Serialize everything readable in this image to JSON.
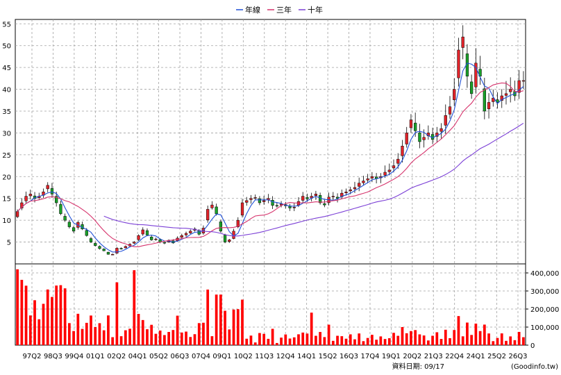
{
  "chart_data": {
    "type": "candlestick",
    "legend": [
      {
        "name": "年線",
        "color": "#1e4fd6"
      },
      {
        "name": "三年",
        "color": "#d6336c"
      },
      {
        "name": "十年",
        "color": "#7b3fd6"
      }
    ],
    "colors": {
      "up": "#e3232a",
      "down": "#1aa12a",
      "volume": "#ff0000",
      "grid": "#a0a0a0"
    },
    "price_axis": {
      "ylim": [
        0,
        56
      ],
      "ticks": [
        5,
        10,
        15,
        20,
        25,
        30,
        35,
        40,
        45,
        50,
        55
      ]
    },
    "volume_axis": {
      "ylim": [
        0,
        450000
      ],
      "ticks": [
        0,
        100000,
        200000,
        300000,
        400000
      ],
      "tick_labels": [
        "0",
        "100,000",
        "200,000",
        "300,000",
        "400,000"
      ]
    },
    "x_tick_labels": [
      "97Q2",
      "98Q3",
      "99Q4",
      "01Q1",
      "02Q2",
      "04Q1",
      "05Q2",
      "06Q3",
      "07Q4",
      "09Q1",
      "10Q2",
      "11Q3",
      "12Q4",
      "14Q1",
      "15Q2",
      "16Q3",
      "17Q4",
      "19Q1",
      "20Q2",
      "21Q3",
      "22Q4",
      "24Q1",
      "25Q2",
      "26Q3"
    ],
    "source_label": "資料日期: 09/17",
    "source_site": "(Goodinfo.tw)",
    "n_periods": 118,
    "close": [
      12,
      14,
      15.5,
      16,
      15,
      15.5,
      16.5,
      18,
      16,
      14,
      11.5,
      10,
      8.5,
      7.5,
      9.5,
      8,
      6.5,
      5,
      4.2,
      3.5,
      3,
      2.2,
      2.2,
      3.6,
      3.5,
      4,
      4.5,
      5,
      6.5,
      7.8,
      6.6,
      5.5,
      5.7,
      5,
      4.8,
      5.4,
      4.8,
      5.9,
      6.5,
      7,
      7.5,
      8,
      6.8,
      8.2,
      12.5,
      13.5,
      11.5,
      7.5,
      5,
      5.5,
      7.5,
      10,
      14,
      14.5,
      15,
      15.2,
      14,
      14.5,
      15,
      13.4,
      13.3,
      13.7,
      13.3,
      12.8,
      13,
      14.3,
      15.5,
      14.9,
      15.5,
      16,
      14,
      13.5,
      15.3,
      15.5,
      15,
      16.2,
      16.5,
      17,
      17.5,
      18.5,
      19,
      19.5,
      20,
      19.5,
      20,
      21,
      21.5,
      22.5,
      24,
      27,
      30,
      33,
      30.5,
      28,
      29,
      30,
      28.5,
      30,
      31,
      34,
      36,
      40,
      49,
      52,
      43,
      39,
      46,
      43,
      35,
      37,
      38,
      37,
      38.5,
      39,
      40,
      38.5,
      42,
      42
    ]
  }
}
